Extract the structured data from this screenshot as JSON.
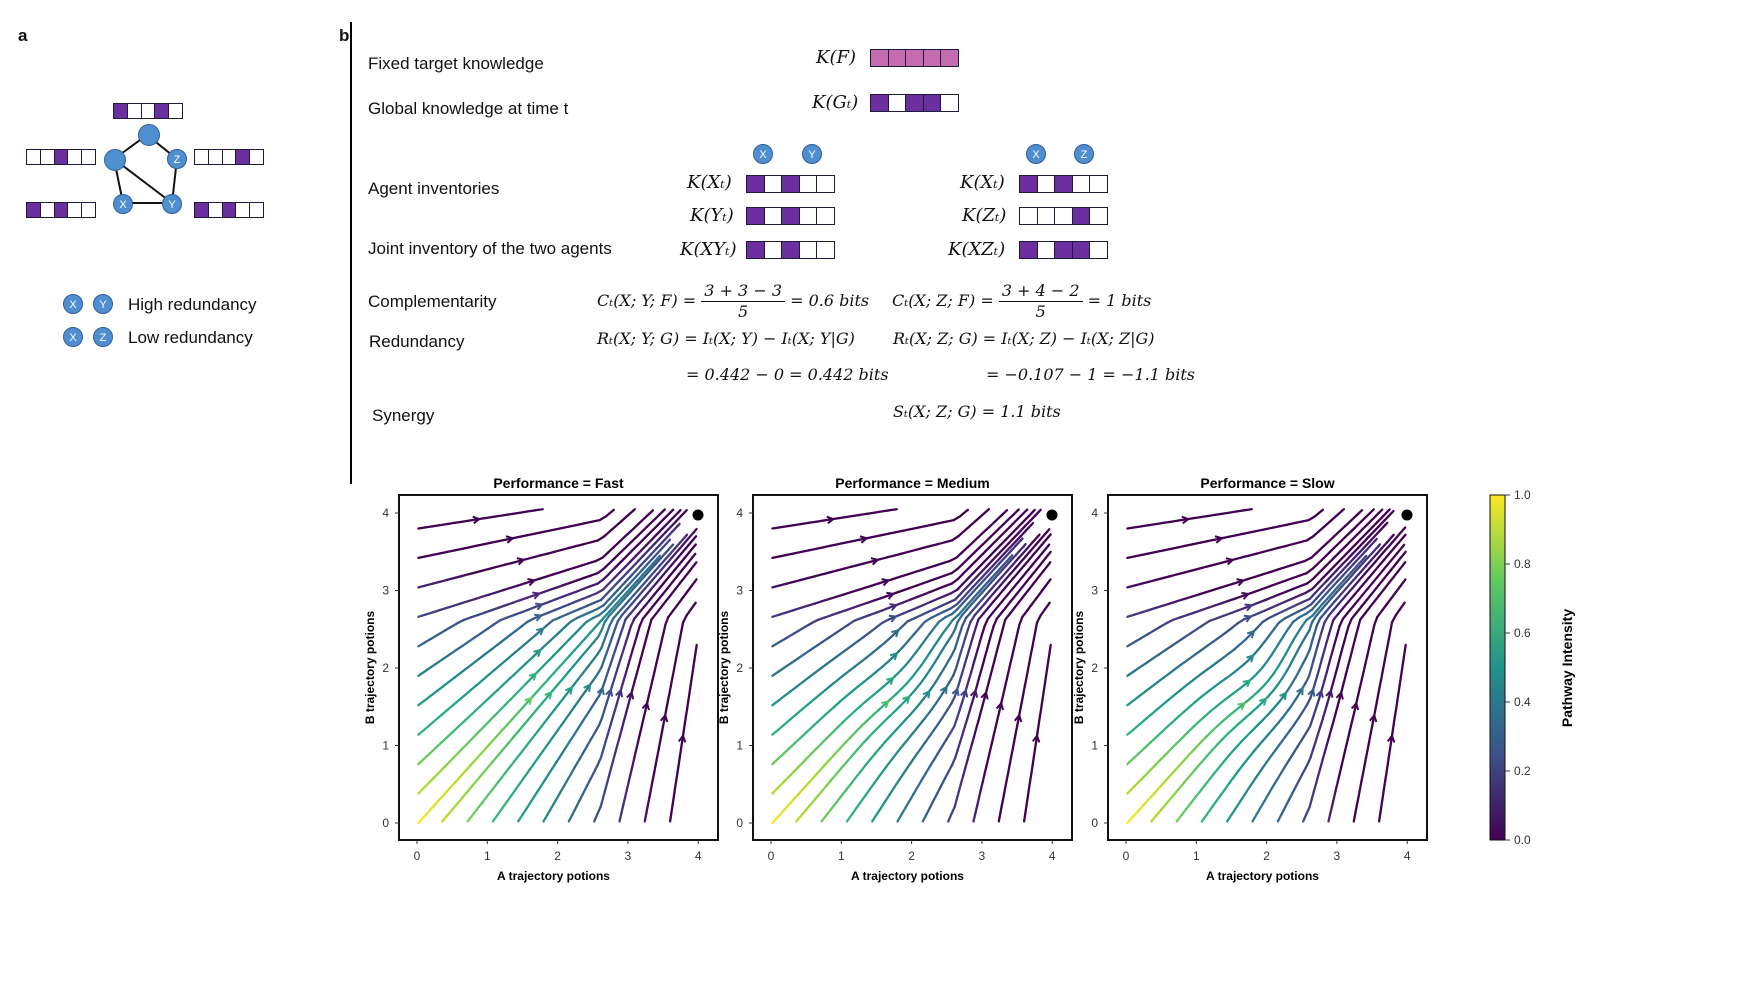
{
  "panel_a": {
    "letter": "a",
    "nodes": [
      "X",
      "Y",
      "Z"
    ],
    "legend": [
      {
        "nodes": [
          "X",
          "Y"
        ],
        "text": "High redundancy"
      },
      {
        "nodes": [
          "X",
          "Z"
        ],
        "text": "Low redundancy"
      }
    ]
  },
  "panel_b": {
    "letter": "b",
    "rows": {
      "fixed_target": "Fixed target knowledge",
      "global": "Global knowledge at time t",
      "agent_inventories": "Agent inventories",
      "joint": "Joint inventory of the two agents",
      "complementarity": "Complementarity",
      "redundancy": "Redundancy",
      "synergy": "Synergy"
    },
    "symbols": {
      "kf": "K(F)",
      "kg": "K(Gₜ)",
      "kx": "K(Xₜ)",
      "ky": "K(Yₜ)",
      "kz": "K(Zₜ)",
      "kxy": "K(XYₜ)",
      "kxz": "K(XZₜ)"
    },
    "pair_left": [
      "X",
      "Y"
    ],
    "pair_right": [
      "X",
      "Z"
    ],
    "eq": {
      "c_left_lhs": "Cₜ(X; Y; F) =",
      "c_left_num": "3 + 3 − 3",
      "c_left_den": "5",
      "c_left_rhs": "= 0.6 bits",
      "c_right_lhs": "Cₜ(X; Z; F) =",
      "c_right_num": "3 + 4 − 2",
      "c_right_den": "5",
      "c_right_rhs": "= 1 bits",
      "r_left": "Rₜ(X; Y; G) = Iₜ(X; Y) − Iₜ(X; Y|G)",
      "r_left_val": "= 0.442 − 0 = 0.442 bits",
      "r_right": "Rₜ(X; Z; G) = Iₜ(X; Z) − Iₜ(X; Z|G)",
      "r_right_val": "= −0.107 − 1 = −1.1 bits",
      "s_right": "Sₜ(X; Z; G) = 1.1 bits"
    }
  },
  "plots": {
    "x_label": "A trajectory potions",
    "y_label": "B trajectory potions",
    "x_ticks": [
      "0",
      "1",
      "2",
      "3",
      "4"
    ],
    "y_ticks": [
      "0",
      "1",
      "2",
      "3",
      "4"
    ],
    "panels": [
      {
        "title": "Performance = Fast"
      },
      {
        "title": "Performance = Medium"
      },
      {
        "title": "Performance = Slow"
      }
    ]
  },
  "colorbar": {
    "label": "Pathway Intensity",
    "ticks": [
      "0.0",
      "0.2",
      "0.4",
      "0.6",
      "0.8",
      "1.0"
    ]
  },
  "colors": {
    "purple": "#6b2fa0",
    "pink": "#c56bb0",
    "node_blue": "#4f8fd0"
  }
}
